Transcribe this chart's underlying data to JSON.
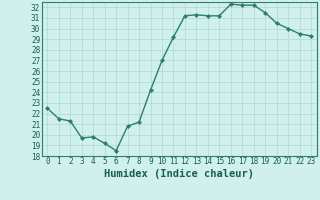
{
  "x": [
    0,
    1,
    2,
    3,
    4,
    5,
    6,
    7,
    8,
    9,
    10,
    11,
    12,
    13,
    14,
    15,
    16,
    17,
    18,
    19,
    20,
    21,
    22,
    23
  ],
  "y": [
    22.5,
    21.5,
    21.3,
    19.7,
    19.8,
    19.2,
    18.5,
    20.8,
    21.2,
    24.2,
    27.0,
    29.2,
    31.2,
    31.3,
    31.2,
    31.2,
    32.3,
    32.2,
    32.2,
    31.5,
    30.5,
    30.0,
    29.5,
    29.3
  ],
  "line_color": "#2e7d6e",
  "marker": "D",
  "marker_size": 2.0,
  "bg_color": "#cff0eb",
  "grid_color": "#b0d8d0",
  "xlabel": "Humidex (Indice chaleur)",
  "ylim": [
    18,
    32.5
  ],
  "xlim": [
    -0.5,
    23.5
  ],
  "yticks": [
    18,
    19,
    20,
    21,
    22,
    23,
    24,
    25,
    26,
    27,
    28,
    29,
    30,
    31,
    32
  ],
  "xticks": [
    0,
    1,
    2,
    3,
    4,
    5,
    6,
    7,
    8,
    9,
    10,
    11,
    12,
    13,
    14,
    15,
    16,
    17,
    18,
    19,
    20,
    21,
    22,
    23
  ],
  "tick_label_fontsize": 5.5,
  "xlabel_fontsize": 7.5,
  "axis_color": "#1a5c50",
  "spine_color": "#2e7d6e",
  "linewidth": 1.0
}
